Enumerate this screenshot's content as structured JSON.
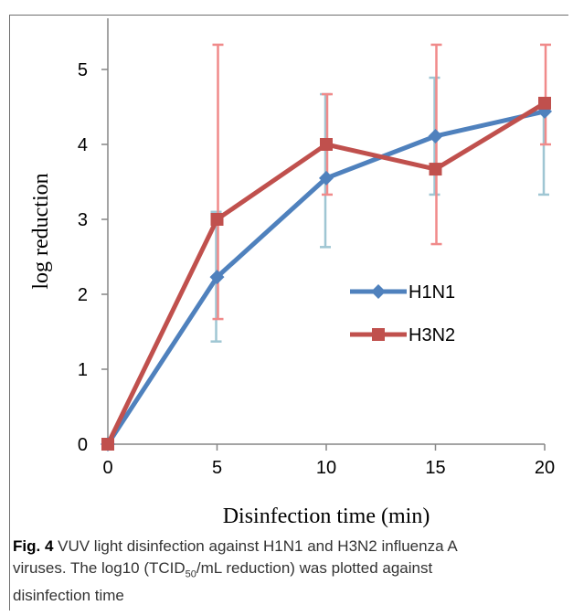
{
  "chart_data": {
    "type": "line",
    "xlabel": "Disinfection time (min)",
    "ylabel": "log reduction",
    "xlim": [
      0,
      20
    ],
    "ylim": [
      0,
      5.5
    ],
    "xticks": [
      "0",
      "5",
      "10",
      "15",
      "20"
    ],
    "yticks": [
      "0",
      "1",
      "2",
      "3",
      "4",
      "5"
    ],
    "x": [
      0,
      5,
      10,
      15,
      20
    ],
    "grid": false,
    "legend_position": "right-center",
    "series": [
      {
        "name": "H1N1",
        "color": "#4f81bd",
        "error_color": "#9fc6d3",
        "marker": "diamond",
        "values": [
          0,
          2.23,
          3.55,
          4.11,
          4.44
        ],
        "error_low": [
          0,
          1.37,
          2.63,
          3.33,
          3.33
        ],
        "error_high": [
          0,
          3.1,
          4.67,
          4.89,
          4.56
        ]
      },
      {
        "name": "H3N2",
        "color": "#c0504d",
        "error_color": "#f08a8a",
        "marker": "square",
        "values": [
          0,
          3.0,
          4.0,
          3.67,
          4.55
        ],
        "error_low": [
          0,
          1.67,
          3.33,
          2.67,
          4.0
        ],
        "error_high": [
          0,
          5.33,
          4.67,
          5.33,
          5.33
        ]
      }
    ]
  },
  "caption": {
    "label": "Fig. 4",
    "line1_text": " VUV light disinfection against H1N1 and H3N2 influenza A",
    "line2_prefix": "viruses. The log10 (TCID",
    "line2_sub": "50",
    "line2_suffix": "/mL reduction) was plotted against",
    "line3": "disinfection time"
  }
}
